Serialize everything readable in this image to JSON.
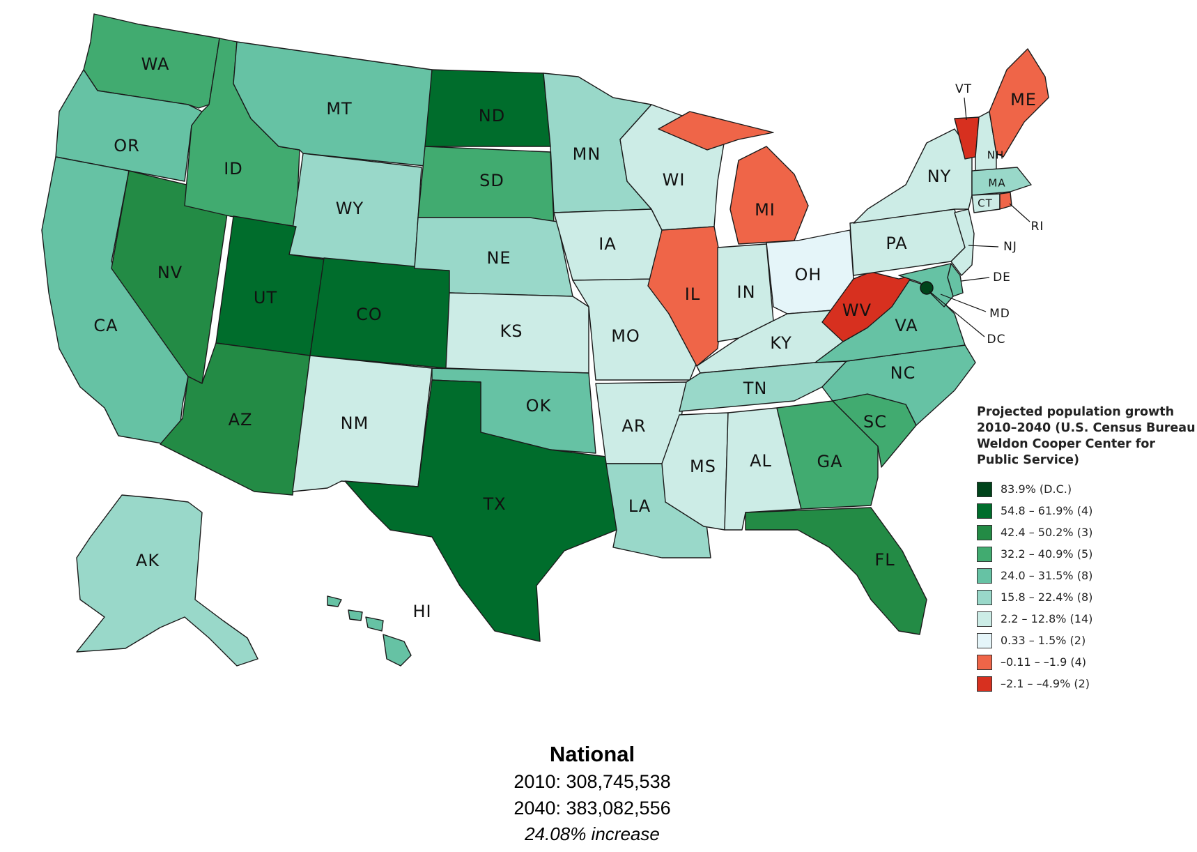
{
  "legend": {
    "title": "Projected population growth\n2010–2040 (U.S. Census Bureau\nWeldon Cooper Center for\nPublic Service)",
    "entries": [
      {
        "label": "83.9% (D.C.)",
        "color": "#00441b"
      },
      {
        "label": "54.8 – 61.9% (4)",
        "color": "#006d2c"
      },
      {
        "label": "42.4 – 50.2% (3)",
        "color": "#238b45"
      },
      {
        "label": "32.2 – 40.9% (5)",
        "color": "#41ab70"
      },
      {
        "label": "24.0 – 31.5% (8)",
        "color": "#66c2a4"
      },
      {
        "label": "15.8 – 22.4% (8)",
        "color": "#99d8c9"
      },
      {
        "label": "2.2 – 12.8% (14)",
        "color": "#ccece6"
      },
      {
        "label": "0.33 – 1.5% (2)",
        "color": "#e5f5f9"
      },
      {
        "label": "–0.11 – –1.9 (4)",
        "color": "#ef6548"
      },
      {
        "label": "–2.1 – –4.9% (2)",
        "color": "#d7301f"
      }
    ]
  },
  "states": {
    "WA": "WA",
    "OR": "OR",
    "CA": "CA",
    "NV": "NV",
    "ID": "ID",
    "MT": "MT",
    "WY": "WY",
    "UT": "UT",
    "CO": "CO",
    "AZ": "AZ",
    "NM": "NM",
    "ND": "ND",
    "SD": "SD",
    "NE": "NE",
    "KS": "KS",
    "OK": "OK",
    "TX": "TX",
    "MN": "MN",
    "IA": "IA",
    "MO": "MO",
    "AR": "AR",
    "LA": "LA",
    "WI": "WI",
    "IL": "IL",
    "MI": "MI",
    "IN": "IN",
    "OH": "OH",
    "KY": "KY",
    "TN": "TN",
    "MS": "MS",
    "AL": "AL",
    "GA": "GA",
    "FL": "FL",
    "SC": "SC",
    "NC": "NC",
    "VA": "VA",
    "WV": "WV",
    "PA": "PA",
    "NY": "NY",
    "VT": "VT",
    "NH": "NH",
    "ME": "ME",
    "MA": "MA",
    "CT": "CT",
    "RI": "RI",
    "NJ": "NJ",
    "DE": "DE",
    "MD": "MD",
    "DC": "DC",
    "AK": "AK",
    "HI": "HI"
  },
  "national": {
    "heading": "National",
    "line_2010": "2010: 308,745,538",
    "line_2040": "2040: 383,082,556",
    "increase": "24.08% increase"
  }
}
